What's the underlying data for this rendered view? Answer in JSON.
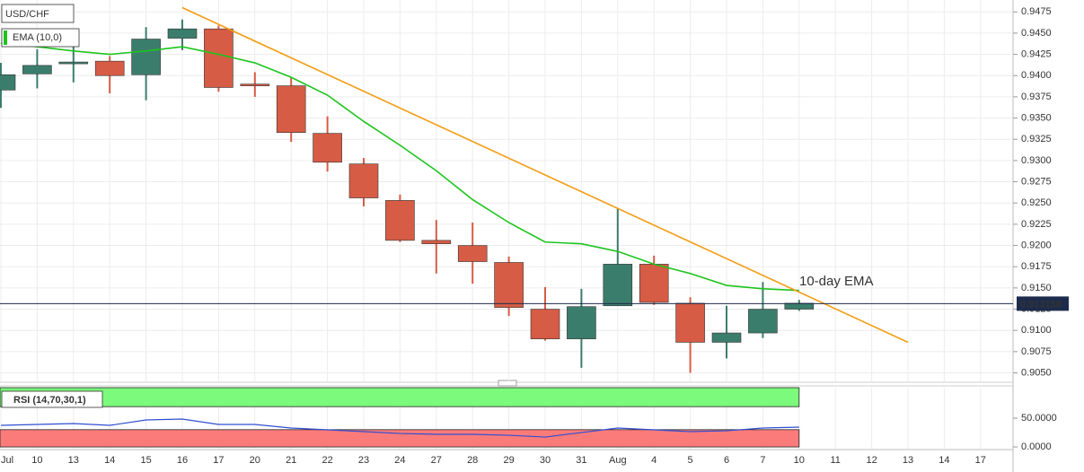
{
  "chart_data": [
    {
      "type": "candlestick",
      "title": "USD/CHF",
      "categories": [
        "Jul",
        "10",
        "13",
        "14",
        "15",
        "16",
        "17",
        "20",
        "21",
        "22",
        "23",
        "24",
        "27",
        "28",
        "29",
        "30",
        "31",
        "Aug",
        "4",
        "5",
        "6",
        "7",
        "10",
        "11",
        "12",
        "13",
        "14",
        "17"
      ],
      "series": [
        {
          "name": "USD/CHF",
          "open": [
            0.9383,
            0.9402,
            0.9414,
            0.9417,
            0.9401,
            0.9444,
            0.9455,
            0.939,
            0.9388,
            0.9332,
            0.9296,
            0.9253,
            0.9206,
            0.92,
            0.918,
            0.9125,
            0.909,
            0.9129,
            0.9178,
            0.9132,
            0.9086,
            0.9097,
            0.9125,
            null,
            null,
            null,
            null,
            null
          ],
          "high": [
            0.9415,
            0.9431,
            0.9436,
            0.9423,
            0.9457,
            0.9466,
            0.9459,
            0.9404,
            0.9398,
            0.9352,
            0.9303,
            0.926,
            0.923,
            0.9227,
            0.9187,
            0.9151,
            0.9149,
            0.9243,
            0.9188,
            0.9139,
            0.9129,
            0.9157,
            0.9136,
            null,
            null,
            null,
            null,
            null
          ],
          "low": [
            0.9362,
            0.9385,
            0.9392,
            0.9379,
            0.9371,
            0.943,
            0.9381,
            0.9375,
            0.9322,
            0.9287,
            0.9246,
            0.9204,
            0.9167,
            0.9155,
            0.9117,
            0.9088,
            0.9056,
            0.9129,
            0.913,
            0.905,
            0.9067,
            0.9091,
            0.9123,
            null,
            null,
            null,
            null,
            null
          ],
          "close": [
            0.9401,
            0.9412,
            0.9416,
            0.94,
            0.9443,
            0.9455,
            0.9386,
            0.9389,
            0.9333,
            0.9298,
            0.9256,
            0.9206,
            0.9202,
            0.9181,
            0.9127,
            0.909,
            0.9128,
            0.9178,
            0.9133,
            0.9086,
            0.9097,
            0.9125,
            0.9132,
            null,
            null,
            null,
            null,
            null
          ]
        },
        {
          "name": "EMA (10,0)",
          "color": "#1dc41d",
          "values": [
            0.9438,
            0.9434,
            0.9429,
            0.9425,
            0.9429,
            0.9434,
            0.9425,
            0.9415,
            0.9398,
            0.9377,
            0.9346,
            0.9318,
            0.9288,
            0.9254,
            0.9227,
            0.9204,
            0.9202,
            0.9193,
            0.9178,
            0.9167,
            0.9153,
            0.9149,
            0.9147,
            null,
            null,
            null,
            null,
            null
          ]
        }
      ],
      "up_color": "#3b7d6c",
      "down_color": "#d65c45",
      "ylim": [
        0.904,
        0.9489
      ],
      "yticks": [
        {
          "value": 0.905,
          "label": "0.9050"
        },
        0.9075,
        {
          "value": 0.91,
          "label": "0.9100"
        },
        0.9125,
        {
          "value": 0.915,
          "label": "0.9150"
        },
        0.9175,
        {
          "value": 0.92,
          "label": "0.9200"
        },
        0.9225,
        {
          "value": 0.925,
          "label": "0.9250"
        },
        0.9275,
        {
          "value": 0.93,
          "label": "0.9300"
        },
        0.9325,
        {
          "value": 0.935,
          "label": "0.9350"
        },
        0.9375,
        {
          "value": 0.94,
          "label": "0.9400"
        },
        0.9425,
        {
          "value": 0.945,
          "label": "0.9450"
        },
        0.9475
      ],
      "grid": true,
      "current_price": {
        "value": 0.91315,
        "label": "0.913150"
      },
      "trendline": {
        "start": 0.948,
        "end": 0.9086,
        "color": "#f39c12"
      },
      "annotation": "10-day EMA"
    },
    {
      "type": "line",
      "title": "RSI (14,70,30,1)",
      "series": [
        {
          "color": "#2f4fd0",
          "values": [
            37.5,
            39.1,
            40.6,
            37.5,
            46.9,
            48.4,
            39.1,
            39.1,
            32.8,
            29.7,
            26.6,
            23.4,
            21.9,
            21.9,
            20.3,
            17.2,
            25.0,
            32.8,
            29.7,
            26.6,
            28.1,
            32.8,
            34.4,
            null,
            null,
            null,
            null,
            null
          ]
        }
      ],
      "ylim": [
        -3,
        103
      ],
      "yticks": [
        {
          "value": 0,
          "label": "0.0000"
        },
        {
          "value": 50,
          "label": "50.0000"
        }
      ],
      "bands": [
        {
          "from": 70,
          "to": 100,
          "color": "#7bfa7b"
        },
        {
          "from": 0,
          "to": 30,
          "color": "#fb7b7b"
        }
      ]
    }
  ]
}
